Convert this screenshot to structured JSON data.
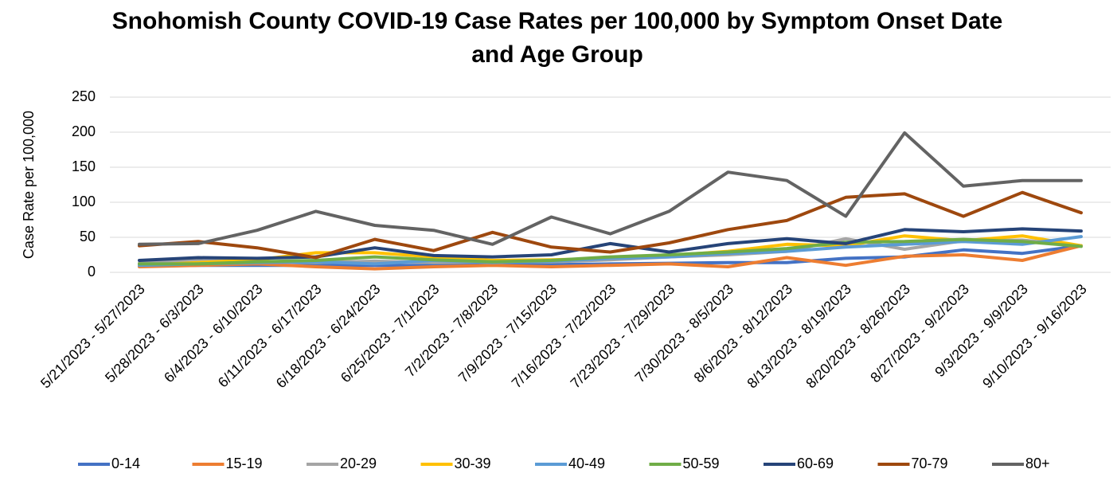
{
  "chart_data": {
    "type": "line",
    "title": "Snohomish County COVID-19 Case Rates per 100,000 by Symptom Onset Date and Age Group",
    "y_label": "Case Rate per 100,000",
    "categories": [
      "5/21/2023 - 5/27/2023",
      "5/28/2023 - 6/3/2023",
      "6/4/2023 - 6/10/2023",
      "6/11/2023 - 6/17/2023",
      "6/18/2023 - 6/24/2023",
      "6/25/2023 - 7/1/2023",
      "7/2/2023 - 7/8/2023",
      "7/9/2023 - 7/15/2023",
      "7/16/2023 - 7/22/2023",
      "7/23/2023 - 7/29/2023",
      "7/30/2023 - 8/5/2023",
      "8/6/2023 - 8/12/2023",
      "8/13/2023 - 8/19/2023",
      "8/20/2023 - 8/26/2023",
      "8/27/2023 - 9/2/2023",
      "9/3/2023 - 9/9/2023",
      "9/10/2023 - 9/16/2023"
    ],
    "series": [
      {
        "name": "0-14",
        "color": "#4472c4",
        "values": [
          9,
          10,
          10,
          10,
          10,
          10,
          11,
          11,
          12,
          13,
          14,
          14,
          20,
          22,
          32,
          27,
          38
        ]
      },
      {
        "name": "15-19",
        "color": "#ed7d31",
        "values": [
          8,
          10,
          12,
          8,
          5,
          8,
          10,
          8,
          10,
          12,
          8,
          21,
          10,
          23,
          25,
          17,
          38
        ]
      },
      {
        "name": "20-29",
        "color": "#a5a5a5",
        "values": [
          13,
          17,
          16,
          14,
          16,
          14,
          15,
          15,
          18,
          22,
          25,
          30,
          48,
          33,
          45,
          46,
          38
        ]
      },
      {
        "name": "30-39",
        "color": "#ffc000",
        "values": [
          10,
          14,
          18,
          28,
          28,
          22,
          17,
          18,
          20,
          24,
          30,
          40,
          38,
          52,
          45,
          52,
          38
        ]
      },
      {
        "name": "40-49",
        "color": "#5b9bd5",
        "values": [
          10,
          12,
          14,
          15,
          12,
          17,
          14,
          16,
          20,
          22,
          27,
          30,
          36,
          40,
          44,
          40,
          51
        ]
      },
      {
        "name": "50-59",
        "color": "#70ad47",
        "values": [
          12,
          12,
          15,
          17,
          22,
          18,
          15,
          17,
          22,
          25,
          29,
          34,
          43,
          44,
          47,
          44,
          37
        ]
      },
      {
        "name": "60-69",
        "color": "#264478",
        "values": [
          17,
          21,
          20,
          22,
          35,
          24,
          22,
          25,
          41,
          29,
          41,
          48,
          41,
          61,
          58,
          62,
          59
        ]
      },
      {
        "name": "70-79",
        "color": "#9e480e",
        "values": [
          38,
          44,
          35,
          21,
          47,
          31,
          57,
          36,
          29,
          42,
          61,
          74,
          107,
          112,
          80,
          114,
          85
        ]
      },
      {
        "name": "80+",
        "color": "#636363",
        "values": [
          40,
          41,
          60,
          87,
          67,
          60,
          40,
          79,
          55,
          87,
          143,
          131,
          80,
          199,
          123,
          131,
          131
        ]
      }
    ],
    "ylim": [
      0,
      250
    ],
    "yticks": [
      0,
      50,
      100,
      150,
      200,
      250
    ],
    "grid": true,
    "legend": "bottom"
  }
}
